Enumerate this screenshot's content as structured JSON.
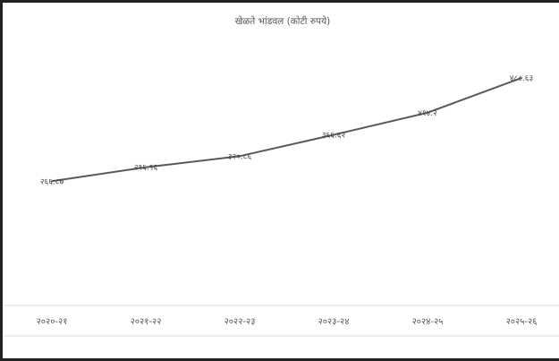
{
  "chart_data": {
    "type": "line",
    "title": "खेळते भांडवल (कोटी रुपये)",
    "categories": [
      "२०२०-२१",
      "२०२१-२२",
      "२०२२-२३",
      "२०२३-२४",
      "२०२४-२५",
      "२०२५-२६"
    ],
    "series": [
      {
        "values": [
          266.87,
          296.96,
          320.86,
          366.62,
          414.2,
          488.63
        ],
        "labels": [
          "२६६.८७",
          "२९६.९६",
          "३२०.८६",
          "३६६.६२",
          "४१४.२",
          "४८८.६३"
        ]
      }
    ],
    "ylim": [
      0,
      560
    ],
    "grid": false,
    "legend": "none",
    "line_color": "#595959"
  }
}
